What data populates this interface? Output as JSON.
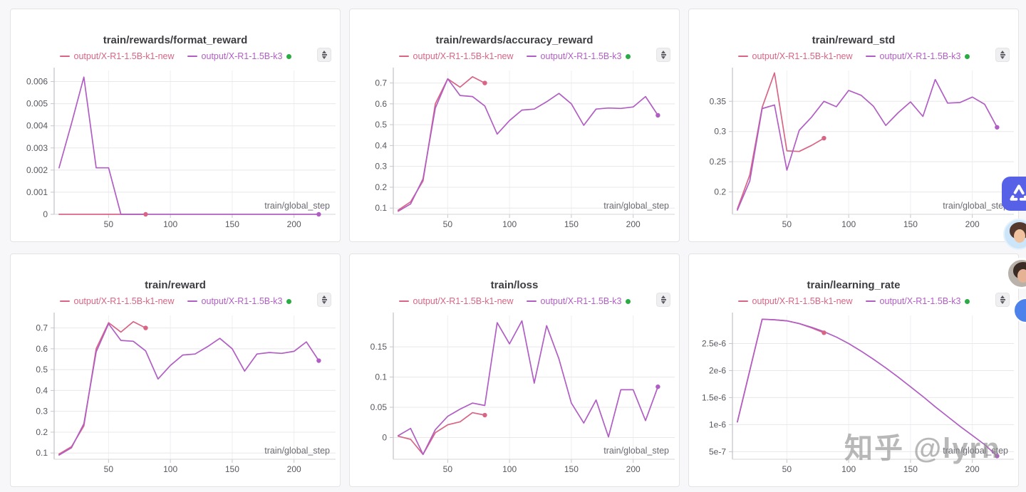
{
  "legend": {
    "series1": "output/X-R1-1.5B-k1-new",
    "series2": "output/X-R1-1.5B-k3"
  },
  "colors": {
    "series1": "#d96585",
    "series2": "#b15ec4",
    "running_dot": "#2bab43",
    "app_icon_bg": "#5661e8"
  },
  "watermark": {
    "text": "知乎 @lyrn"
  },
  "icons": {
    "panel_options": "sort-up-down",
    "running_state": "green-dot"
  },
  "chart_data": [
    {
      "type": "line",
      "title": "train/rewards/format_reward",
      "x_label": "train/global_step",
      "x_range": [
        6,
        229
      ],
      "y_range": [
        0,
        0.0065
      ],
      "x_ticks": [
        50,
        100,
        150,
        200
      ],
      "y_ticks": [
        {
          "v": 0,
          "label": "0"
        },
        {
          "v": 0.001,
          "label": "0.001"
        },
        {
          "v": 0.002,
          "label": "0.002"
        },
        {
          "v": 0.003,
          "label": "0.003"
        },
        {
          "v": 0.004,
          "label": "0.004"
        },
        {
          "v": 0.005,
          "label": "0.005"
        },
        {
          "v": 0.006,
          "label": "0.006"
        }
      ],
      "series": [
        {
          "name": "output/X-R1-1.5B-k1-new",
          "color": "#d96585",
          "points": [
            [
              10,
              0
            ],
            [
              20,
              0
            ],
            [
              30,
              0
            ],
            [
              40,
              0
            ],
            [
              50,
              0
            ],
            [
              60,
              0
            ],
            [
              70,
              0
            ],
            [
              80,
              0
            ]
          ]
        },
        {
          "name": "output/X-R1-1.5B-k3",
          "color": "#b15ec4",
          "points": [
            [
              10,
              0.0021
            ],
            [
              20,
              0.0041
            ],
            [
              30,
              0.0062
            ],
            [
              40,
              0.0021
            ],
            [
              50,
              0.0021
            ],
            [
              60,
              0
            ],
            [
              70,
              0
            ],
            [
              80,
              0
            ],
            [
              90,
              0
            ],
            [
              100,
              0
            ],
            [
              110,
              0
            ],
            [
              120,
              0
            ],
            [
              130,
              0
            ],
            [
              140,
              0
            ],
            [
              150,
              0
            ],
            [
              160,
              0
            ],
            [
              170,
              0
            ],
            [
              180,
              0
            ],
            [
              190,
              0
            ],
            [
              200,
              0
            ],
            [
              210,
              0
            ],
            [
              220,
              0
            ]
          ]
        }
      ]
    },
    {
      "type": "line",
      "title": "train/rewards/accuracy_reward",
      "x_label": "train/global_step",
      "x_range": [
        6,
        229
      ],
      "y_range": [
        0.07,
        0.76
      ],
      "x_ticks": [
        50,
        100,
        150,
        200
      ],
      "y_ticks": [
        {
          "v": 0.1,
          "label": "0.1"
        },
        {
          "v": 0.2,
          "label": "0.2"
        },
        {
          "v": 0.3,
          "label": "0.3"
        },
        {
          "v": 0.4,
          "label": "0.4"
        },
        {
          "v": 0.5,
          "label": "0.5"
        },
        {
          "v": 0.6,
          "label": "0.6"
        },
        {
          "v": 0.7,
          "label": "0.7"
        }
      ],
      "series": [
        {
          "name": "output/X-R1-1.5B-k1-new",
          "color": "#d96585",
          "points": [
            [
              10,
              0.09
            ],
            [
              20,
              0.13
            ],
            [
              30,
              0.23
            ],
            [
              40,
              0.6
            ],
            [
              50,
              0.72
            ],
            [
              60,
              0.68
            ],
            [
              70,
              0.73
            ],
            [
              80,
              0.7
            ]
          ]
        },
        {
          "name": "output/X-R1-1.5B-k3",
          "color": "#b15ec4",
          "points": [
            [
              10,
              0.085
            ],
            [
              20,
              0.12
            ],
            [
              30,
              0.24
            ],
            [
              40,
              0.58
            ],
            [
              50,
              0.72
            ],
            [
              60,
              0.64
            ],
            [
              70,
              0.635
            ],
            [
              80,
              0.59
            ],
            [
              90,
              0.455
            ],
            [
              100,
              0.52
            ],
            [
              110,
              0.57
            ],
            [
              120,
              0.575
            ],
            [
              130,
              0.61
            ],
            [
              140,
              0.65
            ],
            [
              150,
              0.6
            ],
            [
              160,
              0.497
            ],
            [
              170,
              0.575
            ],
            [
              180,
              0.58
            ],
            [
              190,
              0.578
            ],
            [
              200,
              0.585
            ],
            [
              210,
              0.635
            ],
            [
              220,
              0.545
            ]
          ]
        }
      ]
    },
    {
      "type": "line",
      "title": "train/reward_std",
      "x_label": "train/global_step",
      "x_range": [
        6,
        229
      ],
      "y_range": [
        0.163,
        0.401
      ],
      "x_ticks": [
        50,
        100,
        150,
        200
      ],
      "y_ticks": [
        {
          "v": 0.2,
          "label": "0.2"
        },
        {
          "v": 0.25,
          "label": "0.25"
        },
        {
          "v": 0.3,
          "label": "0.3"
        },
        {
          "v": 0.35,
          "label": "0.35"
        }
      ],
      "series": [
        {
          "name": "output/X-R1-1.5B-k1-new",
          "color": "#d96585",
          "points": [
            [
              10,
              0.172
            ],
            [
              20,
              0.228
            ],
            [
              30,
              0.34
            ],
            [
              40,
              0.397
            ],
            [
              50,
              0.268
            ],
            [
              60,
              0.267
            ],
            [
              70,
              0.277
            ],
            [
              80,
              0.289
            ]
          ]
        },
        {
          "name": "output/X-R1-1.5B-k3",
          "color": "#b15ec4",
          "points": [
            [
              10,
              0.17
            ],
            [
              20,
              0.218
            ],
            [
              30,
              0.338
            ],
            [
              40,
              0.344
            ],
            [
              50,
              0.236
            ],
            [
              60,
              0.302
            ],
            [
              70,
              0.324
            ],
            [
              80,
              0.35
            ],
            [
              90,
              0.341
            ],
            [
              100,
              0.368
            ],
            [
              110,
              0.36
            ],
            [
              120,
              0.342
            ],
            [
              130,
              0.31
            ],
            [
              140,
              0.331
            ],
            [
              150,
              0.349
            ],
            [
              160,
              0.325
            ],
            [
              170,
              0.386
            ],
            [
              180,
              0.347
            ],
            [
              190,
              0.348
            ],
            [
              200,
              0.357
            ],
            [
              210,
              0.345
            ],
            [
              220,
              0.307
            ]
          ]
        }
      ]
    },
    {
      "type": "line",
      "title": "train/reward",
      "x_label": "train/global_step",
      "x_range": [
        6,
        229
      ],
      "y_range": [
        0.07,
        0.76
      ],
      "x_ticks": [
        50,
        100,
        150,
        200
      ],
      "y_ticks": [
        {
          "v": 0.1,
          "label": "0.1"
        },
        {
          "v": 0.2,
          "label": "0.2"
        },
        {
          "v": 0.3,
          "label": "0.3"
        },
        {
          "v": 0.4,
          "label": "0.4"
        },
        {
          "v": 0.5,
          "label": "0.5"
        },
        {
          "v": 0.6,
          "label": "0.6"
        },
        {
          "v": 0.7,
          "label": "0.7"
        }
      ],
      "series": [
        {
          "name": "output/X-R1-1.5B-k1-new",
          "color": "#d96585",
          "points": [
            [
              10,
              0.095
            ],
            [
              20,
              0.13
            ],
            [
              30,
              0.23
            ],
            [
              40,
              0.6
            ],
            [
              50,
              0.725
            ],
            [
              60,
              0.68
            ],
            [
              70,
              0.73
            ],
            [
              80,
              0.7
            ]
          ]
        },
        {
          "name": "output/X-R1-1.5B-k3",
          "color": "#b15ec4",
          "points": [
            [
              10,
              0.09
            ],
            [
              20,
              0.125
            ],
            [
              30,
              0.24
            ],
            [
              40,
              0.585
            ],
            [
              50,
              0.72
            ],
            [
              60,
              0.64
            ],
            [
              70,
              0.636
            ],
            [
              80,
              0.59
            ],
            [
              90,
              0.455
            ],
            [
              100,
              0.52
            ],
            [
              110,
              0.57
            ],
            [
              120,
              0.575
            ],
            [
              130,
              0.61
            ],
            [
              140,
              0.65
            ],
            [
              150,
              0.6
            ],
            [
              160,
              0.493
            ],
            [
              170,
              0.575
            ],
            [
              180,
              0.582
            ],
            [
              190,
              0.578
            ],
            [
              200,
              0.588
            ],
            [
              210,
              0.633
            ],
            [
              220,
              0.543
            ]
          ]
        }
      ]
    },
    {
      "type": "line",
      "title": "train/loss",
      "x_label": "train/global_step",
      "x_range": [
        6,
        229
      ],
      "y_range": [
        -0.036,
        0.202
      ],
      "x_ticks": [
        50,
        100,
        150,
        200
      ],
      "y_ticks": [
        {
          "v": 0,
          "label": "0"
        },
        {
          "v": 0.05,
          "label": "0.05"
        },
        {
          "v": 0.1,
          "label": "0.1"
        },
        {
          "v": 0.15,
          "label": "0.15"
        }
      ],
      "series": [
        {
          "name": "output/X-R1-1.5B-k1-new",
          "color": "#d96585",
          "points": [
            [
              10,
              0.002
            ],
            [
              20,
              -0.003
            ],
            [
              30,
              -0.028
            ],
            [
              40,
              0.008
            ],
            [
              50,
              0.021
            ],
            [
              60,
              0.026
            ],
            [
              70,
              0.041
            ],
            [
              80,
              0.037
            ]
          ]
        },
        {
          "name": "output/X-R1-1.5B-k3",
          "color": "#b15ec4",
          "points": [
            [
              10,
              0.003
            ],
            [
              20,
              0.015
            ],
            [
              30,
              -0.028
            ],
            [
              40,
              0.013
            ],
            [
              50,
              0.035
            ],
            [
              60,
              0.047
            ],
            [
              70,
              0.057
            ],
            [
              80,
              0.053
            ],
            [
              90,
              0.19
            ],
            [
              100,
              0.155
            ],
            [
              110,
              0.193
            ],
            [
              120,
              0.09
            ],
            [
              130,
              0.185
            ],
            [
              140,
              0.13
            ],
            [
              150,
              0.057
            ],
            [
              160,
              0.024
            ],
            [
              170,
              0.062
            ],
            [
              180,
              0.001
            ],
            [
              190,
              0.079
            ],
            [
              200,
              0.079
            ],
            [
              210,
              0.028
            ],
            [
              220,
              0.084
            ]
          ]
        }
      ]
    },
    {
      "type": "line",
      "title": "train/learning_rate",
      "x_label": "train/global_step",
      "x_range": [
        6,
        229
      ],
      "y_range": [
        3.6e-07,
        3.02e-06
      ],
      "x_ticks": [
        50,
        100,
        150,
        200
      ],
      "y_ticks": [
        {
          "v": 5e-07,
          "label": "5e-7"
        },
        {
          "v": 1e-06,
          "label": "1e-6"
        },
        {
          "v": 1.5e-06,
          "label": "1.5e-6"
        },
        {
          "v": 2e-06,
          "label": "2e-6"
        },
        {
          "v": 2.5e-06,
          "label": "2.5e-6"
        }
      ],
      "series": [
        {
          "name": "output/X-R1-1.5B-k1-new",
          "color": "#d96585",
          "points": [
            [
              10,
              1.05e-06
            ],
            [
              20,
              2e-06
            ],
            [
              30,
              2.95e-06
            ],
            [
              40,
              2.94e-06
            ],
            [
              50,
              2.92e-06
            ],
            [
              60,
              2.87e-06
            ],
            [
              70,
              2.79e-06
            ],
            [
              80,
              2.7e-06
            ]
          ]
        },
        {
          "name": "output/X-R1-1.5B-k3",
          "color": "#b15ec4",
          "points": [
            [
              10,
              1.05e-06
            ],
            [
              20,
              2e-06
            ],
            [
              30,
              2.95e-06
            ],
            [
              40,
              2.94e-06
            ],
            [
              50,
              2.92e-06
            ],
            [
              60,
              2.87e-06
            ],
            [
              70,
              2.8e-06
            ],
            [
              80,
              2.72e-06
            ],
            [
              90,
              2.62e-06
            ],
            [
              100,
              2.5e-06
            ],
            [
              110,
              2.36e-06
            ],
            [
              120,
              2.21e-06
            ],
            [
              130,
              2.05e-06
            ],
            [
              140,
              1.88e-06
            ],
            [
              150,
              1.7e-06
            ],
            [
              160,
              1.52e-06
            ],
            [
              170,
              1.33e-06
            ],
            [
              180,
              1.15e-06
            ],
            [
              190,
              9.7e-07
            ],
            [
              200,
              8e-07
            ],
            [
              210,
              6.3e-07
            ],
            [
              220,
              4.2e-07
            ]
          ]
        }
      ]
    }
  ]
}
